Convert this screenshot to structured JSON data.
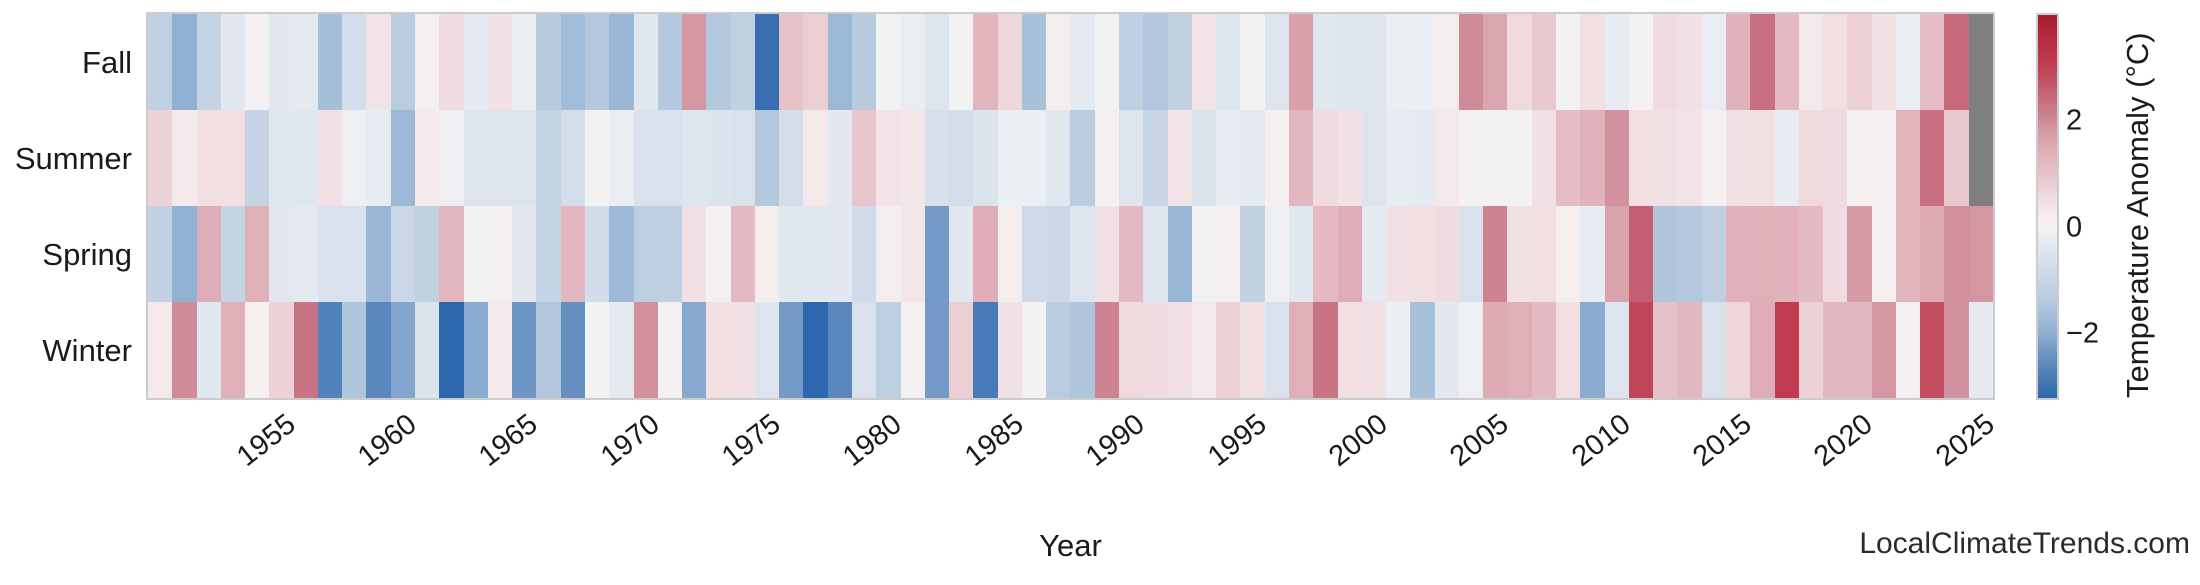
{
  "watermark": "LocalClimateTrends.com",
  "chart_data": {
    "type": "heatmap",
    "title": "",
    "xlabel": "Year",
    "ylabel": "",
    "grid": false,
    "legend_position": "right-colorbar",
    "categories_y": [
      "Fall",
      "Summer",
      "Spring",
      "Winter"
    ],
    "x_start_year": 1950,
    "x_end_year": 2025,
    "x_tick_labels": [
      "1955",
      "1960",
      "1965",
      "1970",
      "1975",
      "1980",
      "1985",
      "1990",
      "1995",
      "2000",
      "2005",
      "2010",
      "2015",
      "2020",
      "2025"
    ],
    "colorbar": {
      "label": "Temperature Anomaly (°C)",
      "tick_labels": [
        "2",
        "0",
        "−2"
      ],
      "tick_values": [
        2,
        0,
        -2
      ],
      "vmin": -3.2,
      "vmax": 4.0,
      "nan_color": "#7f7f7f",
      "color_stops": [
        [
          -3.2,
          "#2d67ae"
        ],
        [
          -2.4,
          "#6992c2"
        ],
        [
          -2.0,
          "#8fb0d3"
        ],
        [
          -1.4,
          "#b5c9de"
        ],
        [
          -1.0,
          "#c7d5e5"
        ],
        [
          -0.5,
          "#dde4ee"
        ],
        [
          -0.15,
          "#ebeef3"
        ],
        [
          0.0,
          "#f2f2f3"
        ],
        [
          0.15,
          "#f5eff0"
        ],
        [
          0.5,
          "#f1dfe2"
        ],
        [
          1.0,
          "#e7c2c9"
        ],
        [
          1.4,
          "#e0b0b9"
        ],
        [
          1.8,
          "#d69aa6"
        ],
        [
          2.1,
          "#cd8392"
        ],
        [
          2.5,
          "#c56577"
        ],
        [
          3.1,
          "#c03b50"
        ],
        [
          4.0,
          "#a81b2d"
        ]
      ]
    },
    "series": [
      {
        "name": "Fall",
        "values": [
          -1.15,
          -2.0,
          -1.05,
          -0.35,
          0.1,
          -0.35,
          -0.3,
          -1.65,
          -0.7,
          0.4,
          -1.3,
          0.1,
          0.55,
          -0.3,
          0.45,
          -0.2,
          -1.35,
          -1.7,
          -1.4,
          -1.85,
          -0.4,
          -1.4,
          1.85,
          -1.4,
          -1.15,
          -3.05,
          1.0,
          0.8,
          -1.8,
          -1.35,
          0.0,
          -0.2,
          -0.5,
          0.0,
          1.3,
          0.65,
          -1.6,
          0.2,
          -0.3,
          0.0,
          -1.2,
          -1.45,
          -1.1,
          0.4,
          -0.45,
          0.0,
          -0.5,
          1.7,
          -0.4,
          -0.45,
          -0.45,
          -0.15,
          -0.15,
          0.2,
          2.0,
          1.6,
          0.6,
          0.9,
          0.0,
          0.5,
          -0.25,
          0.05,
          0.55,
          0.45,
          -0.2,
          1.35,
          2.35,
          1.2,
          0.3,
          0.5,
          0.75,
          0.45,
          -0.2,
          1.1,
          2.45,
          null
        ]
      },
      {
        "name": "Summer",
        "values": [
          0.7,
          0.25,
          0.5,
          0.5,
          -1.05,
          -0.4,
          -0.4,
          0.45,
          -0.1,
          -0.25,
          -1.8,
          0.25,
          -0.1,
          -0.5,
          -0.5,
          -0.5,
          -1.05,
          -0.7,
          0.05,
          -0.2,
          -0.6,
          -0.6,
          -0.45,
          -0.55,
          -0.6,
          -1.4,
          -0.7,
          0.3,
          -0.35,
          0.95,
          0.4,
          0.35,
          -0.65,
          -0.7,
          -0.55,
          -0.15,
          -0.15,
          -0.4,
          -1.3,
          0.1,
          -0.5,
          -1.0,
          0.4,
          -0.55,
          -0.25,
          -0.3,
          0.15,
          1.25,
          0.55,
          0.45,
          -0.5,
          -0.25,
          -0.3,
          0.3,
          0.05,
          0.05,
          0.0,
          0.45,
          1.1,
          1.35,
          1.9,
          0.5,
          0.45,
          0.4,
          0.1,
          0.45,
          0.5,
          -0.25,
          0.6,
          0.55,
          0.15,
          0.15,
          1.3,
          2.35,
          0.9,
          null
        ]
      },
      {
        "name": "Spring",
        "values": [
          -1.1,
          -1.95,
          1.45,
          -1.05,
          1.4,
          -0.35,
          -0.3,
          -0.6,
          -0.6,
          -1.85,
          -0.95,
          -1.15,
          1.25,
          0.0,
          0.1,
          -0.35,
          -1.05,
          1.25,
          -0.75,
          -1.75,
          -1.25,
          -1.2,
          0.45,
          0.1,
          1.2,
          0.2,
          -0.4,
          -0.4,
          -0.35,
          -0.8,
          0.2,
          0.35,
          -2.3,
          -0.4,
          1.45,
          0.2,
          -0.85,
          -0.9,
          -0.5,
          0.45,
          1.2,
          -0.5,
          -1.85,
          0.0,
          0.1,
          -1.1,
          -0.1,
          -0.4,
          1.2,
          1.45,
          -0.3,
          0.45,
          0.5,
          0.55,
          -0.6,
          2.1,
          0.45,
          0.5,
          0.15,
          -0.25,
          1.65,
          2.6,
          -1.5,
          -1.4,
          -1.2,
          1.35,
          1.4,
          1.35,
          1.15,
          0.55,
          1.8,
          0.15,
          1.3,
          1.5,
          1.95,
          1.85
        ]
      },
      {
        "name": "Winter",
        "values": [
          0.3,
          2.0,
          -0.4,
          1.4,
          0.15,
          0.7,
          2.3,
          -2.7,
          -1.5,
          -2.6,
          -2.15,
          -0.55,
          -3.2,
          -2.05,
          0.25,
          -2.35,
          -1.45,
          -2.45,
          0.0,
          -0.3,
          1.95,
          0.1,
          -2.1,
          0.5,
          0.45,
          -0.5,
          -2.3,
          -3.2,
          -2.6,
          -0.6,
          -1.2,
          0.1,
          -2.3,
          0.8,
          -2.85,
          0.45,
          0.05,
          -1.3,
          -1.5,
          2.1,
          0.6,
          0.55,
          0.45,
          0.3,
          0.75,
          0.5,
          -0.6,
          1.4,
          2.3,
          0.5,
          0.45,
          -0.15,
          -1.6,
          -0.35,
          -0.1,
          1.5,
          1.4,
          1.15,
          0.5,
          -2.05,
          -0.5,
          2.95,
          1.05,
          1.25,
          -0.6,
          0.65,
          1.45,
          3.1,
          0.7,
          1.25,
          1.25,
          1.85,
          0.1,
          2.85,
          1.9,
          -0.3
        ]
      }
    ]
  }
}
